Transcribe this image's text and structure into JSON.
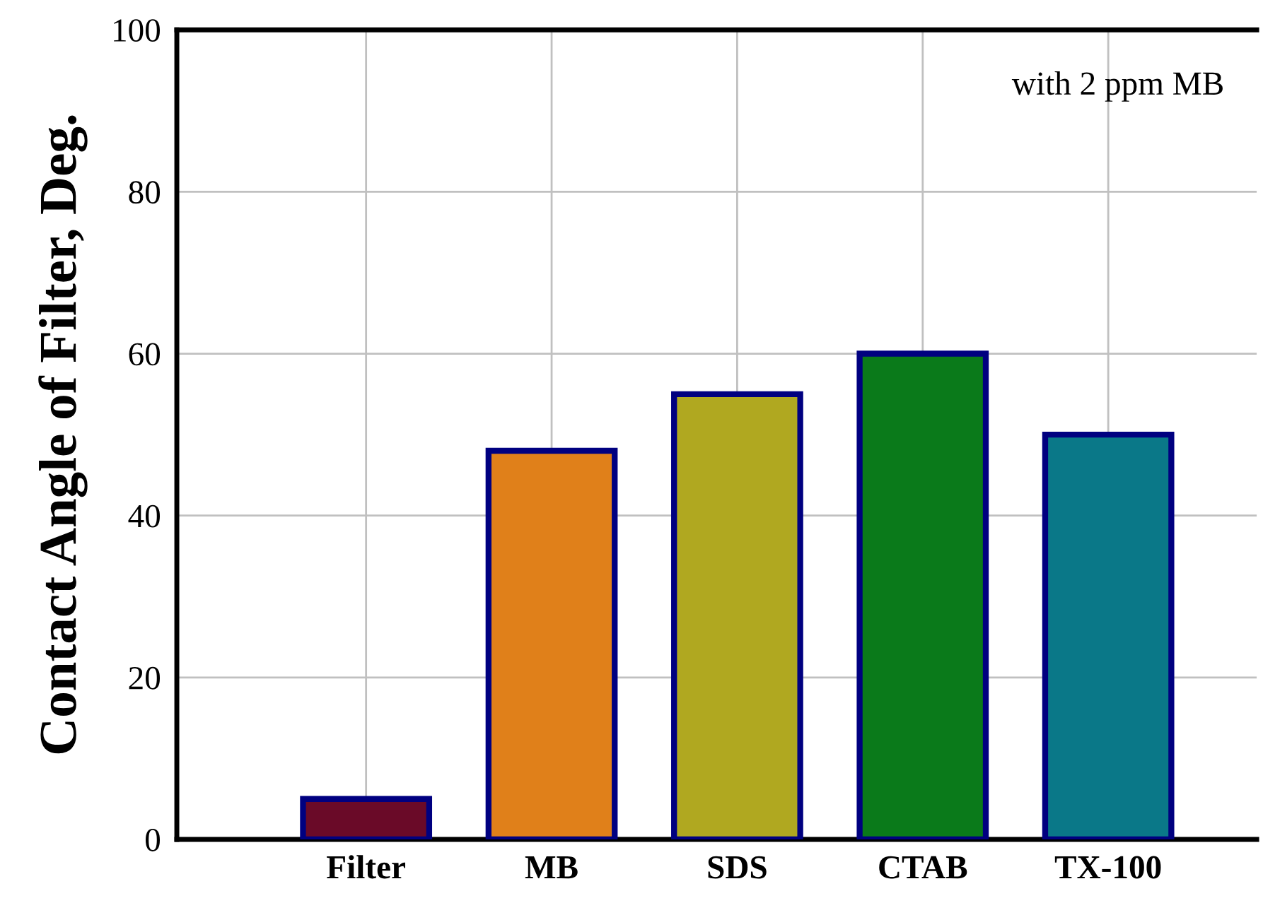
{
  "chart_data": {
    "type": "bar",
    "ylabel": "Contact Angle of Filter, Deg.",
    "categories": [
      "Filter",
      "MB",
      "SDS",
      "CTAB",
      "TX-100"
    ],
    "values": [
      5,
      48,
      55,
      60,
      50
    ],
    "colors": [
      "#6a0a28",
      "#e0801a",
      "#b0a820",
      "#0a7a1a",
      "#0a7888"
    ],
    "ylim": [
      0,
      100
    ],
    "yticks": [
      0,
      20,
      40,
      60,
      80,
      100
    ],
    "grid": true,
    "annotations": [
      "with 2 ppm MB"
    ]
  }
}
